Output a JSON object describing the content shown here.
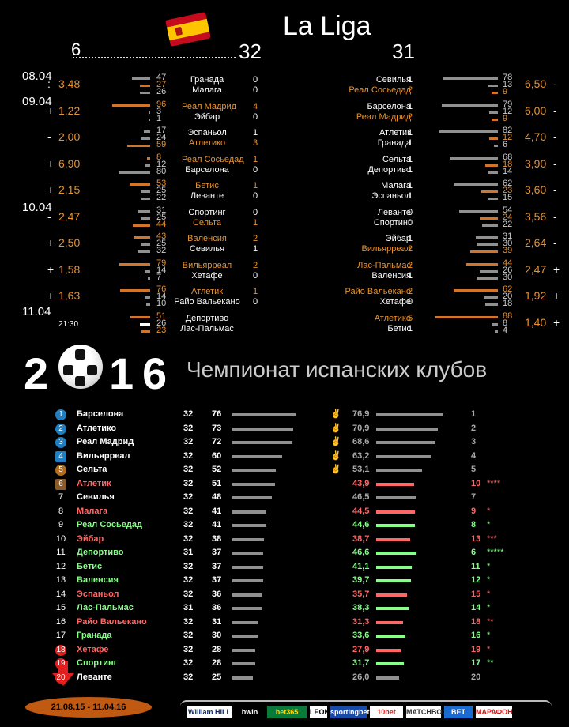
{
  "header": {
    "title": "La Liga",
    "left_round": "6",
    "mid_round": "32",
    "right_round": "31"
  },
  "dates": [
    "08.04",
    "09.04",
    "10.04",
    "11.04"
  ],
  "left_matches": [
    {
      "sign": ":",
      "odd": "3,48",
      "home": "Гранада",
      "away": "Малага",
      "hs": "0",
      "as": "0",
      "hc": "w",
      "ac": "w",
      "p": [
        "47",
        "27",
        "26"
      ],
      "pc": [
        "g",
        "o",
        "g"
      ]
    },
    {
      "sign": "+",
      "odd": "1,22",
      "home": "Реал Мадрид",
      "away": "Эйбар",
      "hs": "4",
      "as": "0",
      "hc": "o",
      "ac": "w",
      "p": [
        "96",
        "3",
        "1"
      ],
      "pc": [
        "o",
        "g",
        "g"
      ]
    },
    {
      "sign": "-",
      "odd": "2,00",
      "home": "Эспаньол",
      "away": "Атлетико",
      "hs": "1",
      "as": "3",
      "hc": "w",
      "ac": "o",
      "p": [
        "17",
        "24",
        "59"
      ],
      "pc": [
        "g",
        "g",
        "o"
      ]
    },
    {
      "sign": "+",
      "odd": "6,90",
      "home": "Реал Сосьедад",
      "away": "Барселона",
      "hs": "1",
      "as": "0",
      "hc": "o",
      "ac": "w",
      "p": [
        "8",
        "12",
        "80"
      ],
      "pc": [
        "o",
        "g",
        "g"
      ]
    },
    {
      "sign": "+",
      "odd": "2,15",
      "home": "Бетис",
      "away": "Леванте",
      "hs": "1",
      "as": "0",
      "hc": "o",
      "ac": "w",
      "p": [
        "53",
        "25",
        "22"
      ],
      "pc": [
        "o",
        "g",
        "g"
      ]
    },
    {
      "sign": "-",
      "odd": "2,47",
      "home": "Спортинг",
      "away": "Сельта",
      "hs": "0",
      "as": "1",
      "hc": "w",
      "ac": "o",
      "p": [
        "31",
        "25",
        "44"
      ],
      "pc": [
        "g",
        "g",
        "o"
      ]
    },
    {
      "sign": "+",
      "odd": "2,50",
      "home": "Валенсия",
      "away": "Севилья",
      "hs": "2",
      "as": "1",
      "hc": "o",
      "ac": "w",
      "p": [
        "43",
        "25",
        "32"
      ],
      "pc": [
        "o",
        "g",
        "g"
      ]
    },
    {
      "sign": "+",
      "odd": "1,58",
      "home": "Вильярреал",
      "away": "Хетафе",
      "hs": "2",
      "as": "0",
      "hc": "o",
      "ac": "w",
      "p": [
        "79",
        "14",
        "7"
      ],
      "pc": [
        "o",
        "g",
        "g"
      ]
    },
    {
      "sign": "+",
      "odd": "1,63",
      "home": "Атлетик",
      "away": "Райо Вальекано",
      "hs": "1",
      "as": "0",
      "hc": "o",
      "ac": "w",
      "p": [
        "76",
        "14",
        "10"
      ],
      "pc": [
        "o",
        "g",
        "g"
      ]
    },
    {
      "sign": "",
      "odd": "21:30",
      "home": "Депортиво",
      "away": "Лас-Пальмас",
      "hs": "",
      "as": "",
      "hc": "w",
      "ac": "w",
      "p": [
        "51",
        "26",
        "23"
      ],
      "pc": [
        "o",
        "wt",
        "o"
      ]
    }
  ],
  "right_matches": [
    {
      "sign": "-",
      "odd": "6,50",
      "home": "Севилья",
      "away": "Реал Сосьедад",
      "hs": "1",
      "as": "2",
      "hc": "w",
      "ac": "o",
      "p": [
        "78",
        "13",
        "9"
      ],
      "pc": [
        "g",
        "g",
        "o"
      ]
    },
    {
      "sign": "-",
      "odd": "6,00",
      "home": "Барселона",
      "away": "Реал Мадрид",
      "hs": "1",
      "as": "2",
      "hc": "w",
      "ac": "o",
      "p": [
        "79",
        "12",
        "9"
      ],
      "pc": [
        "g",
        "g",
        "o"
      ]
    },
    {
      "sign": "-",
      "odd": "4,70",
      "home": "Атлетик",
      "away": "Гранада",
      "hs": "1",
      "as": "1",
      "hc": "w",
      "ac": "w",
      "p": [
        "82",
        "12",
        "6"
      ],
      "pc": [
        "g",
        "o",
        "g"
      ]
    },
    {
      "sign": "-",
      "odd": "3,90",
      "home": "Сельта",
      "away": "Депортиво",
      "hs": "1",
      "as": "1",
      "hc": "w",
      "ac": "w",
      "p": [
        "68",
        "18",
        "14"
      ],
      "pc": [
        "g",
        "o",
        "g"
      ]
    },
    {
      "sign": "-",
      "odd": "3,60",
      "home": "Малага",
      "away": "Эспаньол",
      "hs": "1",
      "as": "1",
      "hc": "w",
      "ac": "w",
      "p": [
        "62",
        "23",
        "15"
      ],
      "pc": [
        "g",
        "o",
        "g"
      ]
    },
    {
      "sign": "-",
      "odd": "3,56",
      "home": "Леванте",
      "away": "Спортинг",
      "hs": "0",
      "as": "0",
      "hc": "w",
      "ac": "w",
      "p": [
        "54",
        "24",
        "22"
      ],
      "pc": [
        "g",
        "o",
        "g"
      ]
    },
    {
      "sign": "-",
      "odd": "2,64",
      "home": "Эйбар",
      "away": "Вильярреал",
      "hs": "1",
      "as": "2",
      "hc": "w",
      "ac": "o",
      "p": [
        "31",
        "30",
        "39"
      ],
      "pc": [
        "g",
        "g",
        "o"
      ]
    },
    {
      "sign": "+",
      "odd": "2,47",
      "home": "Лас-Пальмас",
      "away": "Валенсия",
      "hs": "2",
      "as": "1",
      "hc": "o",
      "ac": "w",
      "p": [
        "44",
        "26",
        "30"
      ],
      "pc": [
        "o",
        "g",
        "g"
      ]
    },
    {
      "sign": "+",
      "odd": "1,92",
      "home": "Райо Вальекано",
      "away": "Хетафе",
      "hs": "2",
      "as": "0",
      "hc": "o",
      "ac": "w",
      "p": [
        "62",
        "20",
        "18"
      ],
      "pc": [
        "o",
        "g",
        "g"
      ]
    },
    {
      "sign": "+",
      "odd": "1,40",
      "home": "Атлетико",
      "away": "Бетис",
      "hs": "5",
      "as": "1",
      "hc": "o",
      "ac": "w",
      "p": [
        "88",
        "8",
        "4"
      ],
      "pc": [
        "o",
        "g",
        "g"
      ]
    }
  ],
  "section": {
    "year_digits": [
      "2",
      "1",
      "6"
    ],
    "title": "Чемпионат испанских клубов"
  },
  "table": [
    {
      "pos": "1",
      "team": "Барселона",
      "gp": "32",
      "pts": "76",
      "avg": "76,9",
      "rank": "1",
      "col": "#ffffff",
      "badge": "#1f7fc2",
      "thumb": true,
      "stars": "",
      "avgcol": "#909090"
    },
    {
      "pos": "2",
      "team": "Атлетико",
      "gp": "32",
      "pts": "73",
      "avg": "70,9",
      "rank": "2",
      "col": "#ffffff",
      "badge": "#1f7fc2",
      "thumb": true,
      "stars": "",
      "avgcol": "#909090"
    },
    {
      "pos": "3",
      "team": "Реал Мадрид",
      "gp": "32",
      "pts": "72",
      "avg": "68,6",
      "rank": "3",
      "col": "#ffffff",
      "badge": "#1f7fc2",
      "thumb": true,
      "stars": "",
      "avgcol": "#909090"
    },
    {
      "pos": "4",
      "team": "Вильярреал",
      "gp": "32",
      "pts": "60",
      "avg": "63,2",
      "rank": "4",
      "col": "#ffffff",
      "badge": "#1f7fc2",
      "thumb": true,
      "stars": "",
      "avgcol": "#909090"
    },
    {
      "pos": "5",
      "team": "Сельта",
      "gp": "32",
      "pts": "52",
      "avg": "53,1",
      "rank": "5",
      "col": "#ffffff",
      "badge": "#b36b1e",
      "thumb": true,
      "stars": "",
      "avgcol": "#909090"
    },
    {
      "pos": "6",
      "team": "Атлетик",
      "gp": "32",
      "pts": "51",
      "avg": "43,9",
      "rank": "10",
      "col": "#ff6666",
      "badge": "#8a5a2a",
      "thumb": false,
      "stars": "****",
      "avgcol": "#ff6666"
    },
    {
      "pos": "7",
      "team": "Севилья",
      "gp": "32",
      "pts": "48",
      "avg": "46,5",
      "rank": "7",
      "col": "#ffffff",
      "badge": "",
      "thumb": false,
      "stars": "",
      "avgcol": "#909090"
    },
    {
      "pos": "8",
      "team": "Малага",
      "gp": "32",
      "pts": "41",
      "avg": "44,5",
      "rank": "9",
      "col": "#ff6666",
      "badge": "",
      "thumb": false,
      "stars": "*",
      "avgcol": "#ff6666"
    },
    {
      "pos": "9",
      "team": "Реал Сосьедад",
      "gp": "32",
      "pts": "41",
      "avg": "44,6",
      "rank": "8",
      "col": "#88ff88",
      "badge": "",
      "thumb": false,
      "stars": "*",
      "avgcol": "#88ff88"
    },
    {
      "pos": "10",
      "team": "Эйбар",
      "gp": "32",
      "pts": "38",
      "avg": "38,7",
      "rank": "13",
      "col": "#ff6666",
      "badge": "",
      "thumb": false,
      "stars": "***",
      "avgcol": "#ff6666"
    },
    {
      "pos": "11",
      "team": "Депортиво",
      "gp": "31",
      "pts": "37",
      "avg": "46,6",
      "rank": "6",
      "col": "#88ff88",
      "badge": "",
      "thumb": false,
      "stars": "*****",
      "avgcol": "#88ff88"
    },
    {
      "pos": "12",
      "team": "Бетис",
      "gp": "32",
      "pts": "37",
      "avg": "41,1",
      "rank": "11",
      "col": "#88ff88",
      "badge": "",
      "thumb": false,
      "stars": "*",
      "avgcol": "#88ff88"
    },
    {
      "pos": "13",
      "team": "Валенсия",
      "gp": "32",
      "pts": "37",
      "avg": "39,7",
      "rank": "12",
      "col": "#88ff88",
      "badge": "",
      "thumb": false,
      "stars": "*",
      "avgcol": "#88ff88"
    },
    {
      "pos": "14",
      "team": "Эспаньол",
      "gp": "32",
      "pts": "36",
      "avg": "35,7",
      "rank": "15",
      "col": "#ff6666",
      "badge": "",
      "thumb": false,
      "stars": "*",
      "avgcol": "#ff6666"
    },
    {
      "pos": "15",
      "team": "Лас-Пальмас",
      "gp": "31",
      "pts": "36",
      "avg": "38,3",
      "rank": "14",
      "col": "#88ff88",
      "badge": "",
      "thumb": false,
      "stars": "*",
      "avgcol": "#88ff88"
    },
    {
      "pos": "16",
      "team": "Райо Вальекано",
      "gp": "32",
      "pts": "31",
      "avg": "31,3",
      "rank": "18",
      "col": "#ff6666",
      "badge": "",
      "thumb": false,
      "stars": "**",
      "avgcol": "#ff6666"
    },
    {
      "pos": "17",
      "team": "Гранада",
      "gp": "32",
      "pts": "30",
      "avg": "33,6",
      "rank": "16",
      "col": "#88ff88",
      "badge": "",
      "thumb": false,
      "stars": "*",
      "avgcol": "#88ff88"
    },
    {
      "pos": "18",
      "team": "Хетафе",
      "gp": "32",
      "pts": "28",
      "avg": "27,9",
      "rank": "19",
      "col": "#ff6666",
      "badge": "#e02020",
      "thumb": false,
      "stars": "*",
      "avgcol": "#ff6666"
    },
    {
      "pos": "19",
      "team": "Спортинг",
      "gp": "32",
      "pts": "28",
      "avg": "31,7",
      "rank": "17",
      "col": "#88ff88",
      "badge": "#e02020",
      "thumb": false,
      "stars": "**",
      "avgcol": "#88ff88"
    },
    {
      "pos": "20",
      "team": "Леванте",
      "gp": "32",
      "pts": "25",
      "avg": "26,0",
      "rank": "20",
      "col": "#ffffff",
      "badge": "#e02020",
      "thumb": false,
      "stars": "",
      "avgcol": "#909090"
    }
  ],
  "footer": {
    "period": "21.08.15 - 11.04.16",
    "bookmakers": [
      "William HILL",
      "bwin",
      "bet365",
      "LEON",
      "sportingbet",
      "10bet",
      "MATCHBOOK",
      "BET",
      "МАРАФОН"
    ]
  },
  "colors": {
    "orange": "#e8922e",
    "bar_orange": "#d4732a",
    "bar_gray": "#909090",
    "red": "#ff6666",
    "green": "#88ff88"
  }
}
